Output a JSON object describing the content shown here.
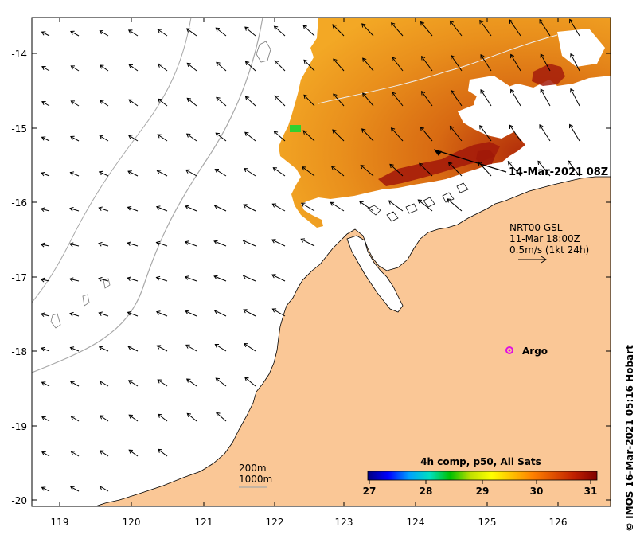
{
  "map": {
    "lon_ticks": [
      "119",
      "120",
      "121",
      "122",
      "123",
      "124",
      "125",
      "126"
    ],
    "lat_ticks": [
      "-14",
      "-15",
      "-16",
      "-17",
      "-18",
      "-19",
      "-20"
    ],
    "colors": {
      "land": "#fac796",
      "ocean": "#ffffff",
      "isobath": "#a8a8a8",
      "argo": "#e010e0",
      "sst_cool": "#f0a020",
      "sst_mid": "#e07810",
      "sst_warm": "#c84a10",
      "sst_hot": "#a01808",
      "sst_green": "#30d030"
    }
  },
  "annotations": {
    "date_marker": "14-Mar-2021 08Z",
    "current_title": "NRT00 GSL",
    "current_time": "11-Mar 18:00Z",
    "current_scale": "0.5m/s (1kt 24h)",
    "argo_label": "Argo",
    "isobath_200": "200m",
    "isobath_1000": "1000m",
    "credit": "© IMOS 16-Mar-2021 05:16 Hobart"
  },
  "colorbar": {
    "title": "4h comp, p50, All Sats",
    "ticks": [
      "27",
      "28",
      "29",
      "30",
      "31"
    ],
    "min": 27,
    "max": 31,
    "stops": [
      "#000080",
      "#0000ff",
      "#00a0ff",
      "#00e0c0",
      "#00c000",
      "#c0e000",
      "#ffff00",
      "#ffc000",
      "#ff8000",
      "#e05000",
      "#c02000",
      "#800000"
    ]
  }
}
